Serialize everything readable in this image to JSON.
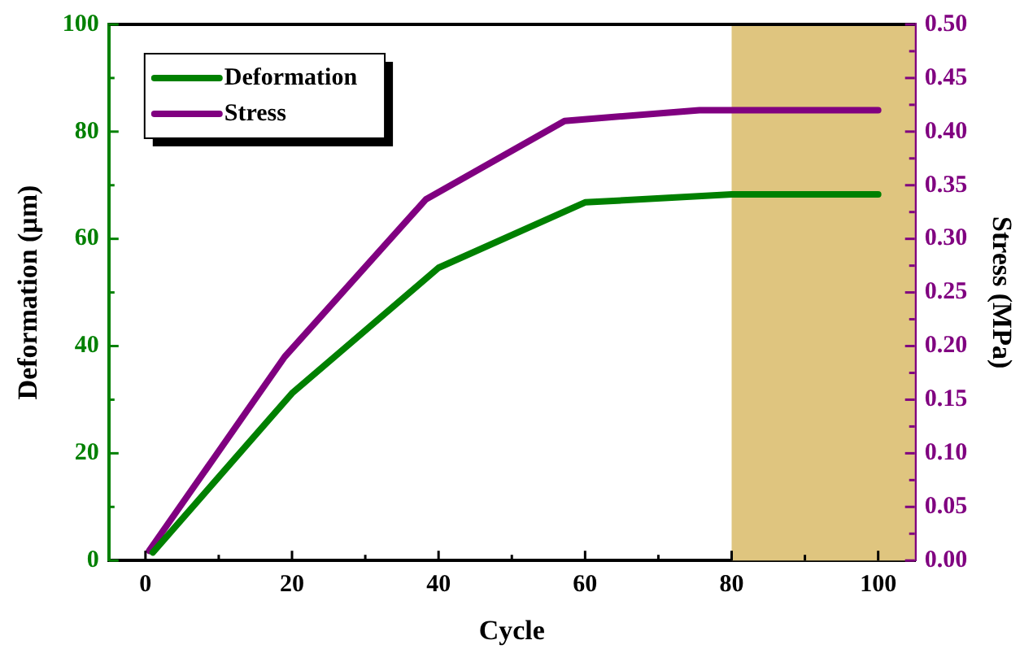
{
  "chart_data": {
    "type": "line",
    "xlabel": "Cycle",
    "ylabel": "Deformation (μm)",
    "y2label": "Stress (MPa)",
    "xlim": [
      -5,
      105
    ],
    "xticks": [
      0,
      20,
      40,
      60,
      80,
      100
    ],
    "ylim": [
      0,
      100
    ],
    "yticks": [
      0,
      20,
      40,
      60,
      80,
      100
    ],
    "y2lim": [
      0,
      0.5
    ],
    "y2ticks": [
      {
        "value": 0,
        "label": "0.00"
      },
      {
        "value": 0.05,
        "label": "0.05"
      },
      {
        "value": 0.1,
        "label": "0.10"
      },
      {
        "value": 0.15,
        "label": "0.15"
      },
      {
        "value": 0.2,
        "label": "0.20"
      },
      {
        "value": 0.25,
        "label": "0.25"
      },
      {
        "value": 0.3,
        "label": "0.30"
      },
      {
        "value": 0.35,
        "label": "0.35"
      },
      {
        "value": 0.4,
        "label": "0.40"
      },
      {
        "value": 0.45,
        "label": "0.45"
      },
      {
        "value": 0.5,
        "label": "0.50"
      }
    ],
    "series": [
      {
        "name": "Deformation",
        "color": "#008000",
        "x": [
          1,
          20,
          40,
          60,
          80,
          100
        ],
        "values": [
          1.5,
          31.2,
          54.6,
          66.8,
          68.3,
          68.3
        ]
      },
      {
        "name": "Stress",
        "color": "#800080",
        "axis": "y2",
        "x": [
          0.5,
          19,
          38.3,
          57.2,
          75.6,
          100
        ],
        "values": [
          0.009,
          0.19,
          0.337,
          0.41,
          0.42,
          0.42
        ]
      }
    ],
    "bands": [
      {
        "axis": "x",
        "from": 80,
        "to": 105,
        "color": "#dfc57f"
      }
    ],
    "legend": "top left",
    "grid": false,
    "marker": "none",
    "line_style": "solid"
  }
}
